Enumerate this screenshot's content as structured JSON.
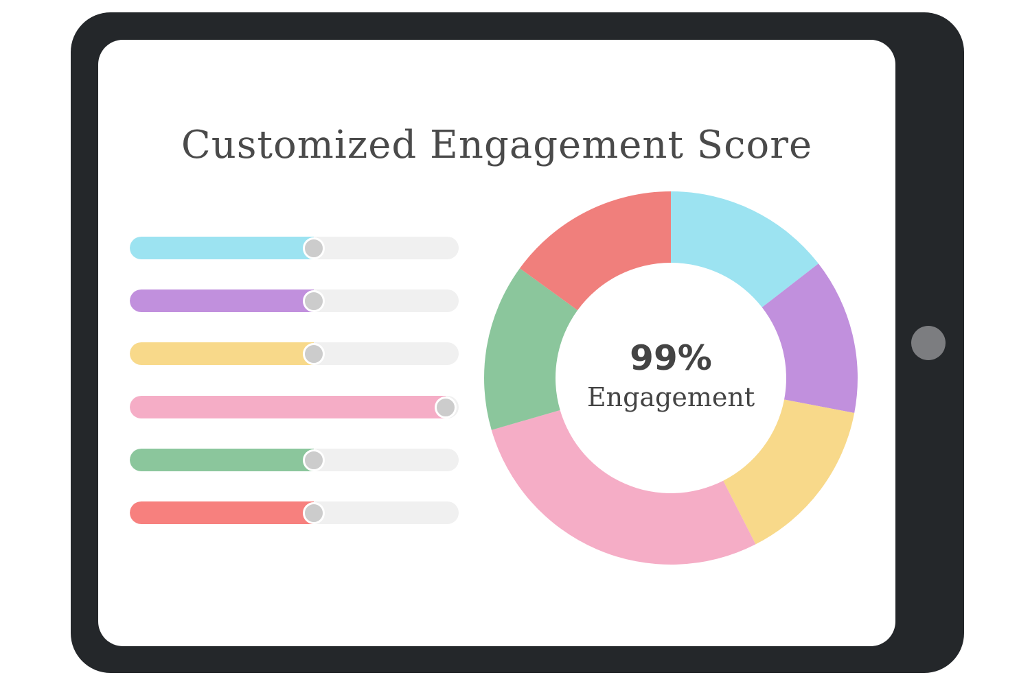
{
  "title": "Customized Engagement Score",
  "colors": {
    "bezel": "#24272a",
    "screen": "#ffffff",
    "track": "#f0f0f0",
    "thumb": "#cccccc",
    "blue": "#9ce3f1",
    "purple": "#c190dd",
    "yellow": "#f8d98a",
    "pink": "#f5adc6",
    "green": "#8bc69c",
    "red": "#f07f7c"
  },
  "sliders": [
    {
      "color": "#9ce3f1",
      "level": 0.56
    },
    {
      "color": "#c190dd",
      "level": 0.56
    },
    {
      "color": "#f8d98a",
      "level": 0.56
    },
    {
      "color": "#f5adc6",
      "level": 0.96
    },
    {
      "color": "#8bc69c",
      "level": 0.56
    },
    {
      "color": "#f7807e",
      "level": 0.56
    }
  ],
  "donut": {
    "value_text": "99%",
    "label": "Engagement"
  },
  "chart_data": {
    "type": "pie",
    "values": [
      14.5,
      13.5,
      14.5,
      28.0,
      14.5,
      15.0
    ],
    "colors": [
      "#9ce3f1",
      "#c190dd",
      "#f8d98a",
      "#f5adc6",
      "#8bc69c",
      "#f07f7c"
    ]
  }
}
